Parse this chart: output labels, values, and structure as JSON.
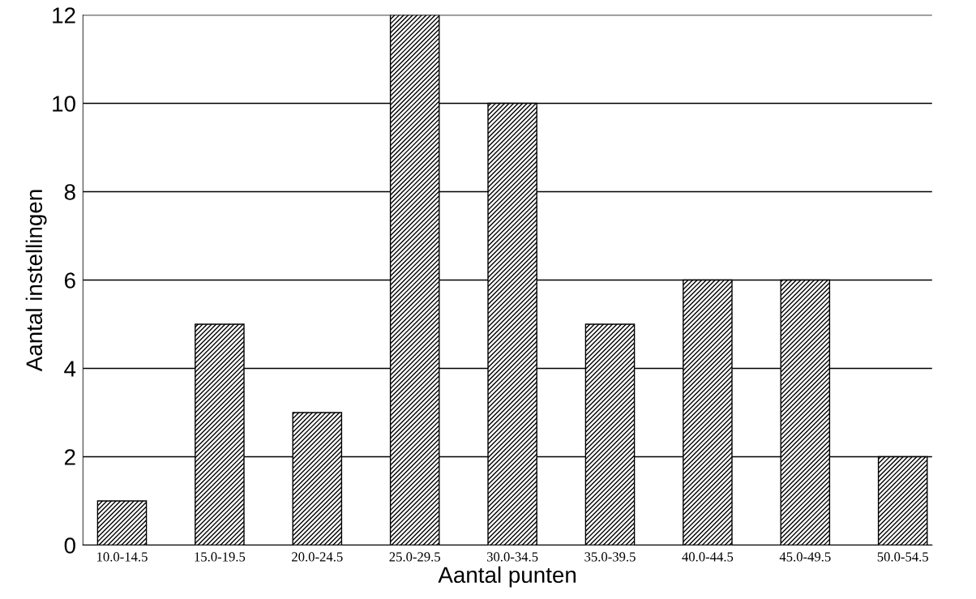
{
  "chart_data": {
    "type": "bar",
    "xlabel": "Aantal punten",
    "ylabel": "Aantal instellingen",
    "categories": [
      "10.0-14.5",
      "15.0-19.5",
      "20.0-24.5",
      "25.0-29.5",
      "30.0-34.5",
      "35.0-39.5",
      "40.0-44.5",
      "45.0-49.5",
      "50.0-54.5"
    ],
    "values": [
      1,
      5,
      3,
      12,
      10,
      5,
      6,
      6,
      2
    ],
    "color": "#000000",
    "ylim": [
      0,
      12
    ],
    "yticks": [
      0,
      2,
      4,
      6,
      8,
      10,
      12
    ],
    "grid": "y",
    "legend": false
  }
}
